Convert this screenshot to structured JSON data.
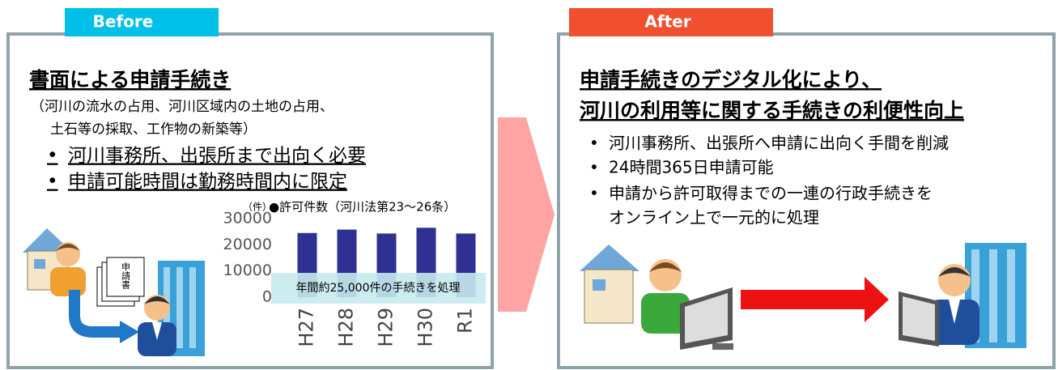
{
  "before": {
    "tab": "Before",
    "title": "書面による申請手続き",
    "subtitle": [
      "（河川の流水の占用、河川区域内の土地の占用、",
      "土石等の採取、工作物の新築等）"
    ],
    "bullets": [
      "河川事務所、出張所まで出向く必要",
      "申請可能時間は勤務時間内に限定"
    ],
    "document_label": "申請書"
  },
  "chart_data": {
    "type": "bar",
    "unit": "（件）",
    "title": "●許可件数（河川法第23～26条）",
    "categories": [
      "H27",
      "H28",
      "H29",
      "H30",
      "R1"
    ],
    "values": [
      24500,
      25800,
      24300,
      26500,
      24300
    ],
    "color": "#2e3192",
    "ylim": [
      0,
      30000
    ],
    "yticks": [
      0,
      10000,
      20000,
      30000
    ],
    "annotation": "年間約25,000件の手続きを処理"
  },
  "after": {
    "tab": "After",
    "title": [
      "申請手続きのデジタル化により、",
      "河川の利用等に関する手続きの利便性向上"
    ],
    "bullets": [
      [
        "河川事務所、出張所へ申請に出向く手間を削減"
      ],
      [
        "24時間365日申請可能"
      ],
      [
        "申請から許可取得までの一連の行政手続きを",
        "オンライン上で一元的に処理"
      ]
    ]
  }
}
